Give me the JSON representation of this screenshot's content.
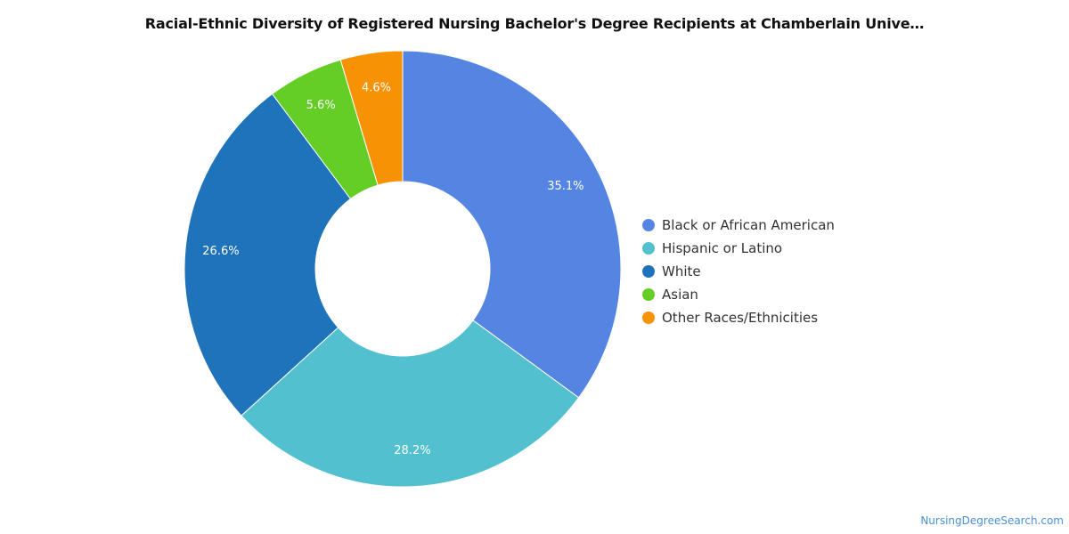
{
  "chart_data": {
    "type": "pie",
    "title": "Racial-Ethnic Diversity of Registered Nursing Bachelor's Degree Recipients at Chamberlain Unive…",
    "donut": true,
    "legend_position": "right",
    "slices": [
      {
        "label": "Black or African American",
        "value": 35.1,
        "display": "35.1%",
        "color": "#5585e3"
      },
      {
        "label": "Hispanic or Latino",
        "value": 28.2,
        "display": "28.2%",
        "color": "#52c0ce"
      },
      {
        "label": "White",
        "value": 26.6,
        "display": "26.6%",
        "color": "#1f73ba"
      },
      {
        "label": "Asian",
        "value": 5.6,
        "display": "5.6%",
        "color": "#64cd26"
      },
      {
        "label": "Other Races/Ethnicities",
        "value": 4.6,
        "display": "4.6%",
        "color": "#f79205"
      }
    ]
  },
  "attribution": "NursingDegreeSearch.com"
}
